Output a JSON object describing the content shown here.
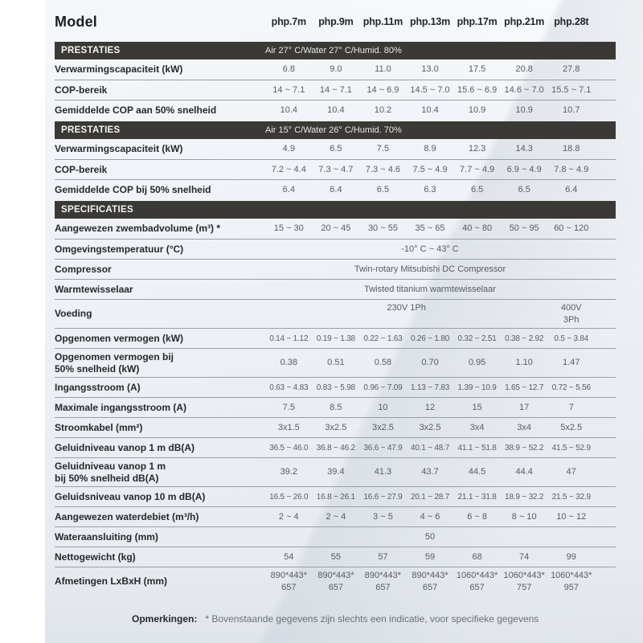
{
  "note": {
    "label": "Opmerkingen:",
    "text": "* Bovenstaande gegevens zijn slechts een indicatie, voor specifieke gegevens"
  },
  "colors": {
    "section_bar": "#3b3936",
    "section_text": "#f4f4f2",
    "label_text": "#26282b",
    "value_text": "#585d63",
    "divider": "#9aa0a6",
    "sheet_background": "#eef1f6",
    "page_background": "#ffffff"
  },
  "table": {
    "model_label": "Model",
    "models": [
      "php.7m",
      "php.9m",
      "php.11m",
      "php.13m",
      "php.17m",
      "php.21m",
      "php.28t"
    ],
    "rows": [
      {
        "type": "section",
        "label": "PRESTATIES",
        "condition": "Air 27° C/Water 27° C/Humid. 80%"
      },
      {
        "type": "data",
        "label": "Verwarmingscapaciteit (kW)",
        "values": [
          "6.8",
          "9.0",
          "11.0",
          "13.0",
          "17.5",
          "20.8",
          "27.8"
        ]
      },
      {
        "type": "data",
        "label": "COP-bereik",
        "values": [
          "14 ~ 7.1",
          "14 ~ 7.1",
          "14 ~ 6.9",
          "14.5 ~ 7.0",
          "15.6 ~ 6.9",
          "14.6 ~ 7.0",
          "15.5 ~ 7.1"
        ]
      },
      {
        "type": "data",
        "label": "Gemiddelde COP aan 50% snelheid",
        "values": [
          "10.4",
          "10.4",
          "10.2",
          "10.4",
          "10.9",
          "10.9",
          "10.7"
        ]
      },
      {
        "type": "section",
        "label": "PRESTATIES",
        "condition": "Air 15° C/Water 26° C/Humid. 70%"
      },
      {
        "type": "data",
        "label": "Verwarmingscapaciteit (kW)",
        "values": [
          "4.9",
          "6.5",
          "7.5",
          "8.9",
          "12.3",
          "14.3",
          "18.8"
        ]
      },
      {
        "type": "data",
        "label": "COP-bereik",
        "values": [
          "7.2 ~ 4.4",
          "7.3 ~ 4.7",
          "7.3 ~ 4.6",
          "7.5 ~ 4.9",
          "7.7 ~ 4.9",
          "6.9 ~ 4.9",
          "7.8 ~ 4.9"
        ]
      },
      {
        "type": "data",
        "label": "Gemiddelde COP bij 50% snelheid",
        "values": [
          "6.4",
          "6.4",
          "6.5",
          "6.3",
          "6.5",
          "6.5",
          "6.4"
        ]
      },
      {
        "type": "section",
        "label": "SPECIFICATIES",
        "condition": ""
      },
      {
        "type": "data",
        "label": "Aangewezen zwembadvolume (m³) *",
        "values": [
          "15 ~ 30",
          "20 ~ 45",
          "30 ~ 55",
          "35 ~ 65",
          "40 ~ 80",
          "50 ~ 95",
          "60 ~ 120"
        ]
      },
      {
        "type": "span",
        "label": "Omgevingstemperatuur (°C)",
        "value": "-10° C ~ 43° C"
      },
      {
        "type": "span",
        "label": "Compressor",
        "value": "Twin-rotary Mitsubishi DC Compressor"
      },
      {
        "type": "span",
        "label": "Warmtewisselaar",
        "value": "Twisted titanium warmtewisselaar"
      },
      {
        "type": "split",
        "label": "Voeding",
        "value_main": "230V 1Ph",
        "value_last": "400V\n3Ph",
        "tall": true
      },
      {
        "type": "data",
        "label": "Opgenomen vermogen (kW)",
        "small": true,
        "values": [
          "0.14 ~ 1.12",
          "0.19 ~ 1.38",
          "0.22 ~ 1.63",
          "0.26 ~ 1.80",
          "0.32 ~ 2.51",
          "0.38 ~ 2.92",
          "0.5 ~ 3.84"
        ]
      },
      {
        "type": "data",
        "label": "Opgenomen vermogen bij\n50% snelheid (kW)",
        "tall": true,
        "values": [
          "0.38",
          "0.51",
          "0.58",
          "0.70",
          "0.95",
          "1.10",
          "1.47"
        ]
      },
      {
        "type": "data",
        "label": "Ingangsstroom (A)",
        "small": true,
        "values": [
          "0.63 ~ 4.83",
          "0.83 ~ 5.98",
          "0.96 ~ 7.09",
          "1.13 ~ 7.83",
          "1.39 ~ 10.9",
          "1.65 ~ 12.7",
          "0.72 ~ 5.56"
        ]
      },
      {
        "type": "data",
        "label": "Maximale ingangsstroom (A)",
        "values": [
          "7.5",
          "8.5",
          "10",
          "12",
          "15",
          "17",
          "7"
        ]
      },
      {
        "type": "data",
        "label": "Stroomkabel (mm²)",
        "values": [
          "3x1.5",
          "3x2.5",
          "3x2.5",
          "3x2.5",
          "3x4",
          "3x4",
          "5x2.5"
        ]
      },
      {
        "type": "data",
        "label": "Geluidniveau vanop 1 m dB(A)",
        "small": true,
        "values": [
          "36.5 ~ 46.0",
          "36.8 ~ 46.2",
          "36.6 ~ 47.9",
          "40.1 ~ 48.7",
          "41.1 ~ 51.8",
          "38.9 ~ 52.2",
          "41.5 ~ 52.9"
        ]
      },
      {
        "type": "data",
        "label": "Geluidniveau vanop 1 m\nbij 50% snelheid dB(A)",
        "tall": true,
        "values": [
          "39.2",
          "39.4",
          "41.3",
          "43.7",
          "44.5",
          "44.4",
          "47"
        ]
      },
      {
        "type": "data",
        "label": "Geluidsniveau vanop 10 m dB(A)",
        "small": true,
        "values": [
          "16.5 ~ 26.0",
          "16.8 ~ 26.1",
          "16.6 ~ 27.9",
          "20.1 ~ 28.7",
          "21.1 ~ 31.8",
          "18.9 ~ 32.2",
          "21.5 ~ 32.9"
        ]
      },
      {
        "type": "data",
        "label": "Aangewezen waterdebiet (m³/h)",
        "values": [
          "2 ~ 4",
          "2 ~ 4",
          "3 ~ 5",
          "4 ~ 6",
          "6 ~ 8",
          "8 ~ 10",
          "10 ~ 12"
        ]
      },
      {
        "type": "span",
        "label": "Wateraansluiting (mm)",
        "value": "50"
      },
      {
        "type": "data",
        "label": "Nettogewicht (kg)",
        "values": [
          "54",
          "55",
          "57",
          "59",
          "68",
          "74",
          "99"
        ]
      },
      {
        "type": "data",
        "label": "Afmetingen LxBxH (mm)",
        "tall": true,
        "values": [
          "890*443*\n657",
          "890*443*\n657",
          "890*443*\n657",
          "890*443*\n657",
          "1060*443*\n657",
          "1060*443*\n757",
          "1060*443*\n957"
        ]
      }
    ]
  }
}
